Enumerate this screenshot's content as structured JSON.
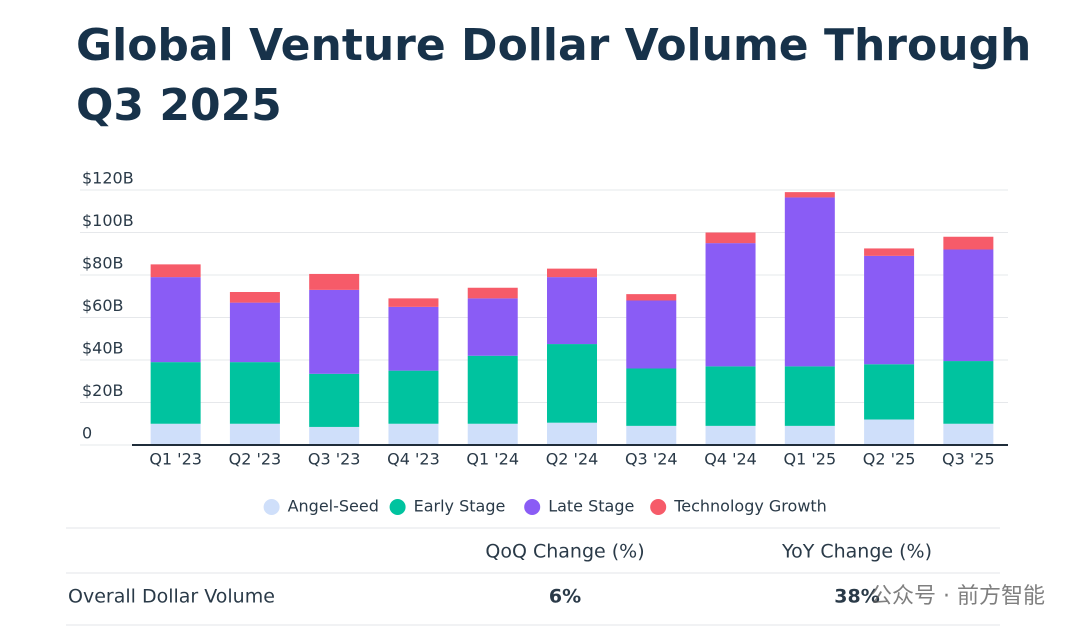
{
  "chart_data": {
    "type": "stacked_bar",
    "title_lines": [
      "Global Venture Dollar Volume Through",
      "Q3 2025"
    ],
    "categories": [
      "Q1 '23",
      "Q2 '23",
      "Q3 '23",
      "Q4 '23",
      "Q1 '24",
      "Q2 '24",
      "Q3 '24",
      "Q4 '24",
      "Q1 '25",
      "Q2 '25",
      "Q3 '25"
    ],
    "series": [
      {
        "name": "Angel-Seed",
        "color": "#cfdffa",
        "values": [
          10,
          10,
          8.5,
          10,
          10,
          10.5,
          9,
          9,
          9,
          12,
          10
        ]
      },
      {
        "name": "Early Stage",
        "color": "#00c39f",
        "values": [
          29,
          29,
          25,
          25,
          32,
          37,
          27,
          28,
          28,
          26,
          29.5
        ]
      },
      {
        "name": "Late Stage",
        "color": "#8a5cf5",
        "values": [
          40,
          28,
          39.5,
          30,
          27,
          31.5,
          32,
          58,
          79.5,
          51,
          52.5
        ]
      },
      {
        "name": "Technology Growth",
        "color": "#f65b69",
        "values": [
          6,
          5,
          7.5,
          4,
          5,
          4,
          3,
          5,
          2.5,
          3.5,
          6
        ]
      }
    ],
    "ylim": [
      0,
      120
    ],
    "yticks": [
      {
        "value": 0,
        "label": "0"
      },
      {
        "value": 20,
        "label": "$20B"
      },
      {
        "value": 40,
        "label": "$40B"
      },
      {
        "value": 60,
        "label": "$60B"
      },
      {
        "value": 80,
        "label": "$80B"
      },
      {
        "value": 100,
        "label": "$100B"
      },
      {
        "value": 120,
        "label": "$120B"
      }
    ],
    "grid": true,
    "legend": "bottom",
    "table": {
      "columns": [
        "QoQ Change (%)",
        "YoY Change (%)"
      ],
      "rows": [
        [
          "Overall Dollar Volume",
          "6%",
          "38%"
        ]
      ]
    },
    "watermark": "公众号 · 前方智能"
  }
}
